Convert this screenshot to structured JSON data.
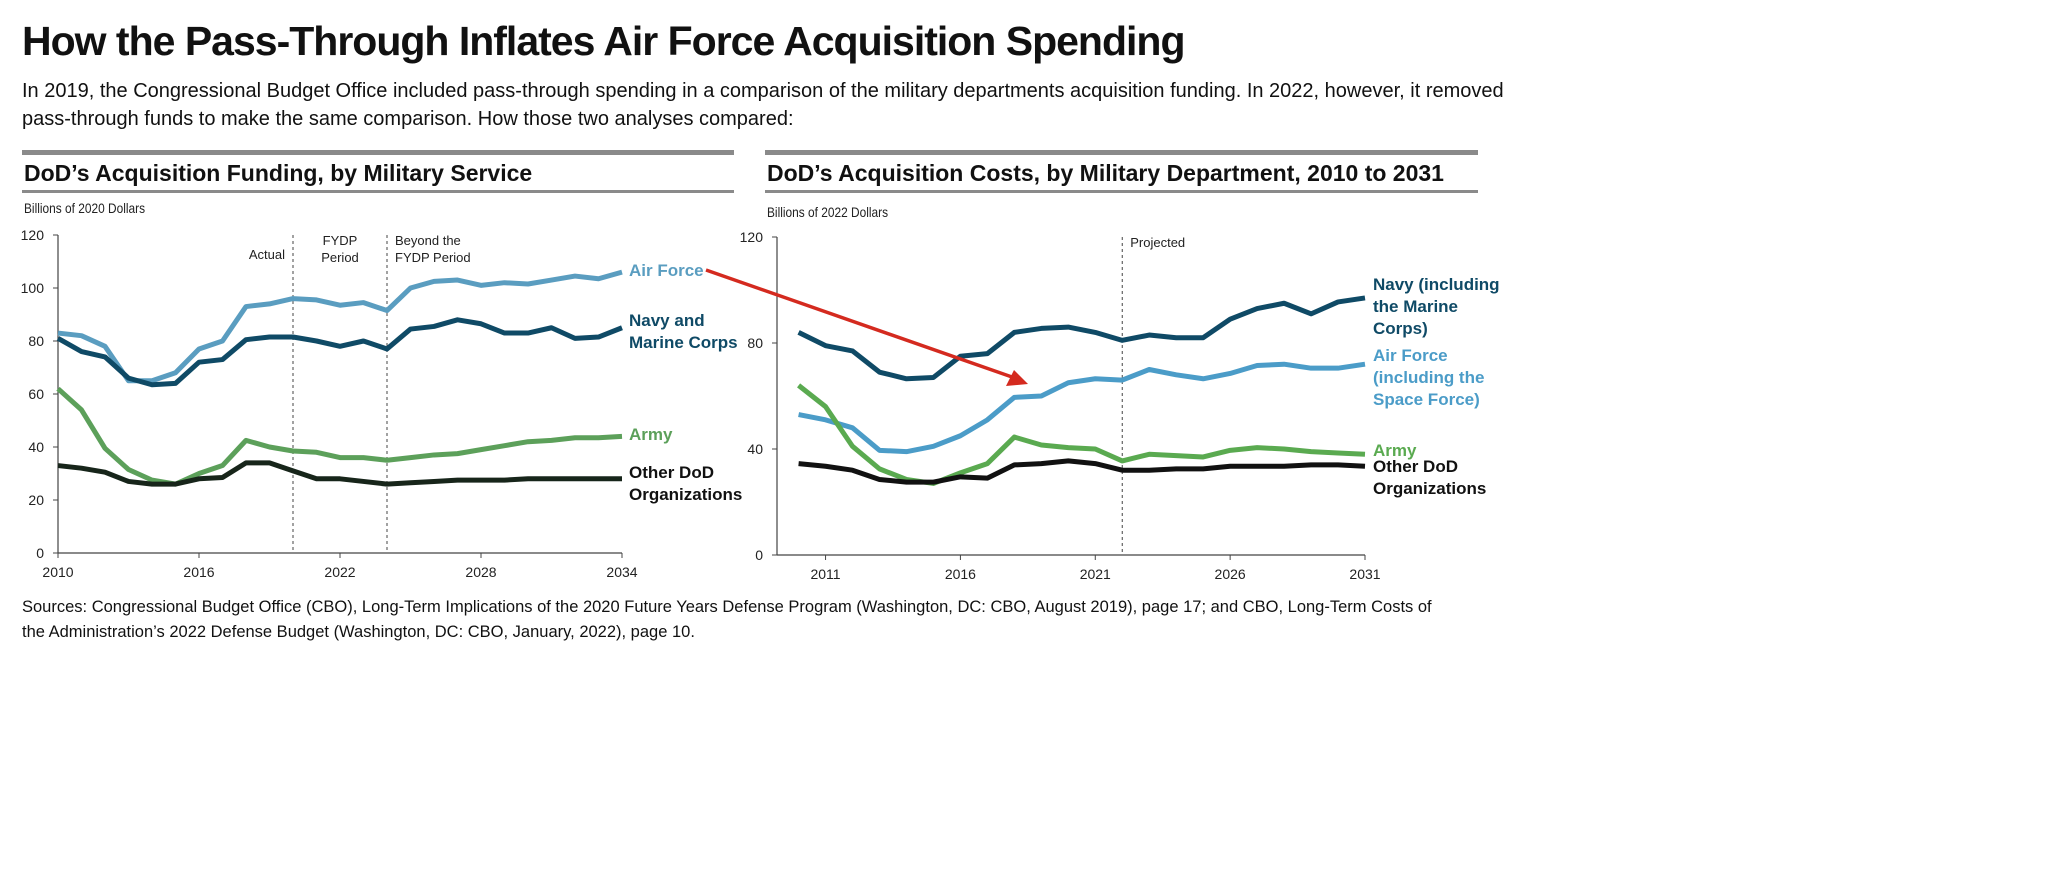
{
  "title": "How the Pass-Through Inflates Air Force Acquisition Spending",
  "subtitle_lines": [
    "In 2019, the Congressional Budget Office included pass-through spending in a comparison of the military departments acquisition funding. In 2022, however, it removed",
    "pass-through funds to make the same comparison. How those two analyses compared:"
  ],
  "sources_lines": [
    "Sources: Congressional Budget Office (CBO), Long-Term Implications of the 2020 Future Years Defense Program (Washington, DC: CBO, August 2019), page 17; and CBO, Long-Term Costs of",
    "the Administration’s 2022 Defense Budget (Washington, DC: CBO, January, 2022), page 10."
  ],
  "arrow_color": "#d42a1f",
  "chart_data": [
    {
      "type": "line",
      "title": "DoD’s Acquisition Funding, by Military Service",
      "ylabel": "Billions of 2020 Dollars",
      "x_start": 2010,
      "xlim": [
        2010,
        2034
      ],
      "ylim": [
        0,
        120
      ],
      "xticks": [
        2010,
        2016,
        2022,
        2028,
        2034
      ],
      "yticks": [
        0,
        20,
        40,
        60,
        80,
        100,
        120
      ],
      "grid": false,
      "legend": "inline-right",
      "periods": [
        {
          "x": 2020,
          "label": "Actual",
          "side": "left"
        },
        {
          "x": 2024,
          "label": "FYDP Period",
          "side": "between"
        },
        {
          "x": 2024,
          "label": "Beyond the FYDP Period",
          "side": "right"
        }
      ],
      "series": [
        {
          "name": "Air Force",
          "color": "#5a9dc0",
          "values": [
            83,
            82,
            78,
            65,
            65,
            68,
            77,
            80,
            93,
            94,
            96,
            95.5,
            93.5,
            94.5,
            91.5,
            100,
            102.5,
            103,
            101,
            102,
            101.5,
            103,
            104.5,
            103.5,
            106
          ]
        },
        {
          "name": "Navy and Marine Corps",
          "color": "#0f4a66",
          "values": [
            81,
            76,
            74,
            66,
            63.5,
            64,
            72,
            73,
            80.5,
            81.5,
            81.5,
            80,
            78,
            80,
            77,
            84.5,
            85.5,
            88,
            86.5,
            83,
            83,
            85,
            81,
            81.5,
            85
          ]
        },
        {
          "name": "Army",
          "color": "#5ca05a",
          "values": [
            62,
            54,
            39.5,
            31.5,
            27.5,
            26,
            30,
            33,
            42.5,
            40,
            38.5,
            38,
            36,
            36,
            35,
            36,
            37,
            37.5,
            39,
            40.5,
            42,
            42.5,
            43.5,
            43.5,
            44
          ]
        },
        {
          "name": "Other DoD Organizations",
          "color": "#17251a",
          "values": [
            33,
            32,
            30.5,
            27,
            26,
            26,
            28,
            28.5,
            34,
            34,
            31,
            28,
            28,
            27,
            26,
            26.5,
            27,
            27.5,
            27.5,
            27.5,
            28,
            28,
            28,
            28,
            28
          ]
        }
      ]
    },
    {
      "type": "line",
      "title": "DoD’s Acquisition Costs, by Military Department, 2010 to 2031",
      "ylabel": "Billions of 2022 Dollars",
      "x_start": 2010,
      "xlim": [
        2009.2,
        2031
      ],
      "ylim": [
        0,
        120
      ],
      "xticks": [
        2011,
        2016,
        2021,
        2026,
        2031
      ],
      "yticks": [
        0,
        40,
        80,
        120
      ],
      "grid": false,
      "legend": "inline-right",
      "periods": [
        {
          "x": 2022,
          "label": "Projected",
          "side": "right"
        }
      ],
      "series": [
        {
          "name": "Navy (including the Marine Corps)",
          "color": "#0f4a66",
          "values": [
            84,
            79,
            77,
            69,
            66.5,
            67,
            75,
            76,
            84,
            85.5,
            86,
            84,
            81,
            83,
            82,
            82,
            89,
            93,
            95,
            91,
            95.5,
            97
          ]
        },
        {
          "name": "Air Force (including the Space Force)",
          "color": "#4b9cc8",
          "values": [
            53,
            51,
            48,
            39.5,
            39,
            41,
            45,
            51,
            59.5,
            60,
            65,
            66.5,
            66,
            70,
            68,
            66.5,
            68.5,
            71.5,
            72,
            70.5,
            70.5,
            72
          ]
        },
        {
          "name": "Army",
          "color": "#5aaa50",
          "values": [
            64,
            56,
            41,
            32.5,
            28.5,
            27,
            31,
            34.5,
            44.5,
            41.5,
            40.5,
            40,
            35.5,
            38,
            37.5,
            37,
            39.5,
            40.5,
            40,
            39,
            38.5,
            38
          ]
        },
        {
          "name": "Other DoD Organizations",
          "color": "#111111",
          "values": [
            34.5,
            33.5,
            32,
            28.5,
            27.5,
            27.5,
            29.5,
            29,
            34,
            34.5,
            35.5,
            34.5,
            32,
            32,
            32.5,
            32.5,
            33.5,
            33.5,
            33.5,
            34,
            34,
            33.5
          ]
        }
      ]
    }
  ]
}
